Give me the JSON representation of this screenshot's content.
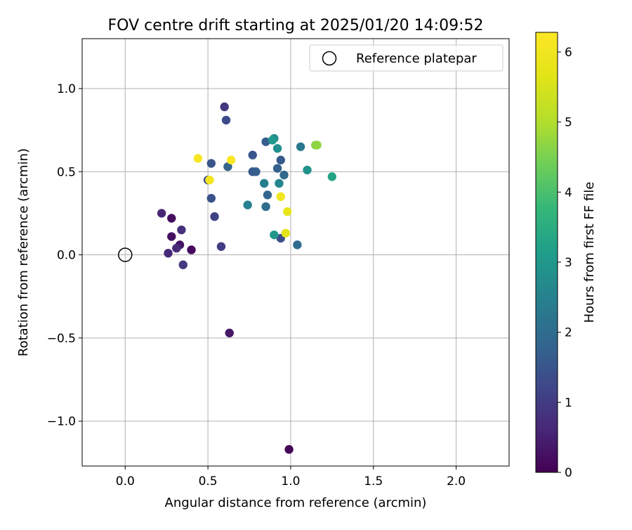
{
  "chart_data": {
    "type": "scatter",
    "title": "FOV centre drift starting at 2025/01/20 14:09:52",
    "xlabel": "Angular distance from reference (arcmin)",
    "ylabel": "Rotation from reference (arcmin)",
    "xlim": [
      -0.26,
      2.32
    ],
    "ylim": [
      -1.27,
      1.3
    ],
    "xticks": [
      0.0,
      0.5,
      1.0,
      1.5,
      2.0
    ],
    "xtick_labels": [
      "0.0",
      "0.5",
      "1.0",
      "1.5",
      "2.0"
    ],
    "yticks": [
      -1.0,
      -0.5,
      0.0,
      0.5,
      1.0
    ],
    "ytick_labels": [
      "−1.0",
      "−0.5",
      "0.0",
      "0.5",
      "1.0"
    ],
    "grid": true,
    "legend": {
      "placement": "top-right",
      "entries": [
        "Reference platepar"
      ]
    },
    "colorbar": {
      "label": "Hours from first FF file",
      "colormap": "viridis",
      "range": [
        0,
        6.28
      ],
      "ticks": [
        0,
        1,
        2,
        3,
        4,
        5,
        6
      ],
      "tick_labels": [
        "0",
        "1",
        "2",
        "3",
        "4",
        "5",
        "6"
      ]
    },
    "reference_point": {
      "x": 0.0,
      "y": 0.0
    },
    "points": [
      {
        "x": 0.99,
        "y": -1.17,
        "hours": 0.05
      },
      {
        "x": 0.4,
        "y": 0.03,
        "hours": 0.15
      },
      {
        "x": 0.28,
        "y": 0.22,
        "hours": 0.2
      },
      {
        "x": 0.28,
        "y": 0.11,
        "hours": 0.25
      },
      {
        "x": 0.33,
        "y": 0.06,
        "hours": 0.3
      },
      {
        "x": 0.63,
        "y": -0.47,
        "hours": 0.35
      },
      {
        "x": 0.22,
        "y": 0.25,
        "hours": 0.6
      },
      {
        "x": 0.26,
        "y": 0.01,
        "hours": 0.65
      },
      {
        "x": 0.31,
        "y": 0.04,
        "hours": 0.7
      },
      {
        "x": 0.34,
        "y": 0.15,
        "hours": 0.8
      },
      {
        "x": 0.6,
        "y": 0.89,
        "hours": 0.9
      },
      {
        "x": 0.35,
        "y": -0.06,
        "hours": 0.95
      },
      {
        "x": 0.58,
        "y": 0.05,
        "hours": 1.0
      },
      {
        "x": 0.54,
        "y": 0.23,
        "hours": 1.1
      },
      {
        "x": 0.61,
        "y": 0.81,
        "hours": 1.3
      },
      {
        "x": 0.5,
        "y": 0.45,
        "hours": 1.35
      },
      {
        "x": 0.52,
        "y": 0.34,
        "hours": 1.45
      },
      {
        "x": 0.52,
        "y": 0.55,
        "hours": 1.5
      },
      {
        "x": 0.94,
        "y": 0.1,
        "hours": 1.4
      },
      {
        "x": 0.77,
        "y": 0.6,
        "hours": 1.5
      },
      {
        "x": 0.94,
        "y": 0.57,
        "hours": 1.6
      },
      {
        "x": 0.77,
        "y": 0.5,
        "hours": 1.6
      },
      {
        "x": 0.79,
        "y": 0.5,
        "hours": 1.7
      },
      {
        "x": 0.85,
        "y": 0.68,
        "hours": 1.7
      },
      {
        "x": 0.92,
        "y": 0.52,
        "hours": 1.75
      },
      {
        "x": 0.62,
        "y": 0.53,
        "hours": 1.8
      },
      {
        "x": 0.86,
        "y": 0.36,
        "hours": 1.85
      },
      {
        "x": 0.96,
        "y": 0.48,
        "hours": 1.9
      },
      {
        "x": 1.04,
        "y": 0.06,
        "hours": 2.0
      },
      {
        "x": 0.85,
        "y": 0.29,
        "hours": 2.0
      },
      {
        "x": 1.06,
        "y": 0.65,
        "hours": 2.3
      },
      {
        "x": 0.84,
        "y": 0.43,
        "hours": 2.45
      },
      {
        "x": 0.74,
        "y": 0.3,
        "hours": 2.5
      },
      {
        "x": 0.93,
        "y": 0.43,
        "hours": 2.6
      },
      {
        "x": 0.9,
        "y": 0.7,
        "hours": 2.7
      },
      {
        "x": 0.92,
        "y": 0.64,
        "hours": 2.8
      },
      {
        "x": 1.1,
        "y": 0.51,
        "hours": 2.9
      },
      {
        "x": 0.9,
        "y": 0.12,
        "hours": 2.95
      },
      {
        "x": 0.89,
        "y": 0.69,
        "hours": 3.05
      },
      {
        "x": 1.25,
        "y": 0.47,
        "hours": 3.3
      },
      {
        "x": 1.15,
        "y": 0.66,
        "hours": 4.6
      },
      {
        "x": 1.16,
        "y": 0.66,
        "hours": 4.7
      },
      {
        "x": 0.97,
        "y": 0.13,
        "hours": 5.7
      },
      {
        "x": 0.98,
        "y": 0.26,
        "hours": 5.8
      },
      {
        "x": 0.94,
        "y": 0.35,
        "hours": 6.0
      },
      {
        "x": 0.51,
        "y": 0.45,
        "hours": 6.05
      },
      {
        "x": 0.44,
        "y": 0.58,
        "hours": 6.15
      },
      {
        "x": 0.64,
        "y": 0.57,
        "hours": 6.2
      }
    ]
  }
}
